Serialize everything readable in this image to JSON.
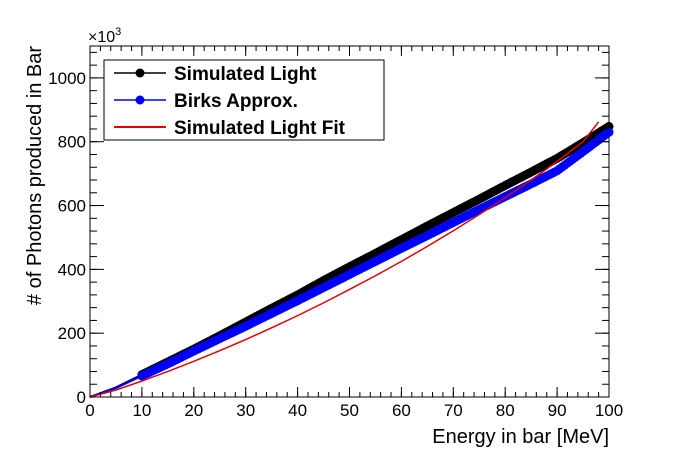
{
  "chart_data": {
    "type": "line",
    "title": "",
    "xlabel": "Energy in bar [MeV]",
    "ylabel": "# of Photons produced in Bar",
    "xlim": [
      0,
      100
    ],
    "ylim": [
      0,
      1100
    ],
    "y_multiplier_base": "×10",
    "y_multiplier_exp": "3",
    "x_ticks": [
      0,
      10,
      20,
      30,
      40,
      50,
      60,
      70,
      80,
      90,
      100
    ],
    "y_ticks": [
      0,
      200,
      400,
      600,
      800,
      1000
    ],
    "grid": false,
    "legend_position": "top-left",
    "series": [
      {
        "name": "Simulated Light",
        "color": "#000000",
        "marker": "circle",
        "x": [
          0,
          5,
          10,
          15,
          20,
          25,
          30,
          35,
          40,
          45,
          50,
          55,
          60,
          65,
          70,
          75,
          80,
          85,
          90,
          95,
          100
        ],
        "y": [
          0,
          30,
          70,
          110,
          150,
          192,
          235,
          278,
          320,
          365,
          408,
          450,
          493,
          536,
          578,
          620,
          663,
          705,
          748,
          797,
          848
        ]
      },
      {
        "name": "Birks Approx.",
        "color": "#0000ff",
        "marker": "circle",
        "x": [
          0,
          5,
          10,
          15,
          20,
          25,
          30,
          35,
          40,
          45,
          50,
          55,
          60,
          65,
          70,
          75,
          80,
          85,
          90,
          95,
          100
        ],
        "y": [
          0,
          28,
          66,
          104,
          144,
          183,
          222,
          262,
          302,
          343,
          384,
          425,
          466,
          506,
          547,
          588,
          628,
          668,
          709,
          769,
          830
        ]
      },
      {
        "name": "Simulated Light Fit",
        "color": "#e00000",
        "marker": "none",
        "x": [
          0,
          5,
          10,
          15,
          20,
          25,
          30,
          35,
          40,
          45,
          50,
          55,
          60,
          65,
          70,
          75,
          80,
          85,
          90,
          95,
          98
        ],
        "y": [
          0,
          22,
          50,
          80,
          112,
          145,
          180,
          217,
          255,
          295,
          337,
          380,
          425,
          472,
          521,
          572,
          625,
          680,
          738,
          800,
          862
        ]
      }
    ]
  }
}
